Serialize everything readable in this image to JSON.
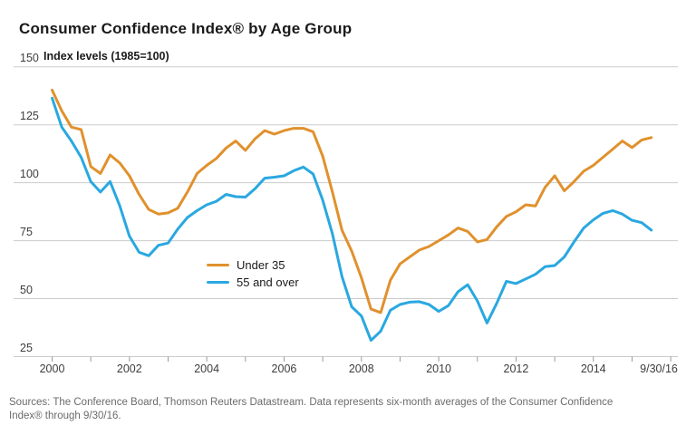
{
  "title": "Consumer Confidence Index® by Age Group",
  "y_axis": {
    "unit_label": "Index levels (1985=100)",
    "ticks": [
      150,
      125,
      100,
      75,
      50,
      25
    ]
  },
  "x_axis": {
    "minor_tick_years": [
      2000,
      2001,
      2002,
      2003,
      2004,
      2005,
      2006,
      2007,
      2008,
      2009,
      2010,
      2011,
      2012,
      2013,
      2014,
      2015,
      2016
    ],
    "labels": [
      "2000",
      "2002",
      "2004",
      "2006",
      "2008",
      "2010",
      "2012",
      "2014",
      "9/30/16"
    ]
  },
  "legend": [
    {
      "label": "Under 35",
      "color": "#E0912D"
    },
    {
      "label": "55 and over",
      "color": "#29A8E0"
    }
  ],
  "source_line1": "Sources: The Conference Board, Thomson Reuters Datastream. Data represents six-month averages of the Consumer Confidence",
  "source_line2": "Index®  through 9/30/16.",
  "colors": {
    "gridline": "#cbcbcb",
    "tick": "#9a9a9a",
    "under35": "#E0912D",
    "over55": "#29A8E0"
  },
  "chart_data": {
    "type": "line",
    "title": "Consumer Confidence Index® by Age Group",
    "ylabel": "Index levels (1985=100)",
    "ylim": [
      25,
      150
    ],
    "grid": "horizontal",
    "legend_position": "inside-left-middle",
    "x": [
      2000,
      2000.25,
      2000.5,
      2000.75,
      2001,
      2001.25,
      2001.5,
      2001.75,
      2002,
      2002.25,
      2002.5,
      2002.75,
      2003,
      2003.25,
      2003.5,
      2003.75,
      2004,
      2004.25,
      2004.5,
      2004.75,
      2005,
      2005.25,
      2005.5,
      2005.75,
      2006,
      2006.25,
      2006.5,
      2006.75,
      2007,
      2007.25,
      2007.5,
      2007.75,
      2008,
      2008.25,
      2008.5,
      2008.75,
      2009,
      2009.25,
      2009.5,
      2009.75,
      2010,
      2010.25,
      2010.5,
      2010.75,
      2011,
      2011.25,
      2011.5,
      2011.75,
      2012,
      2012.25,
      2012.5,
      2012.75,
      2013,
      2013.25,
      2013.5,
      2013.75,
      2014,
      2014.25,
      2014.5,
      2014.75,
      2015,
      2015.25,
      2015.5
    ],
    "series": [
      {
        "name": "Under 35",
        "color": "#E0912D",
        "values": [
          140,
          131,
          124,
          123,
          107,
          104,
          112,
          108.5,
          103,
          95,
          88.5,
          86.5,
          87,
          89,
          96,
          104,
          107.5,
          110.5,
          115,
          118,
          114,
          119,
          122.5,
          121,
          122.5,
          123.5,
          123.5,
          122,
          111.5,
          96,
          79.5,
          70.5,
          59,
          45.5,
          44,
          58,
          65,
          68,
          71,
          72.5,
          75,
          77.5,
          80.5,
          79,
          74.5,
          75.5,
          81,
          85.5,
          87.5,
          90.5,
          90,
          98,
          103,
          96.5,
          100.5,
          105,
          107.5,
          111,
          114.5,
          118,
          115.2,
          118.5,
          119.5
        ]
      },
      {
        "name": "55 and over",
        "color": "#29A8E0",
        "values": [
          136.5,
          124,
          118,
          111,
          100.5,
          96,
          100.5,
          90,
          77,
          70,
          68.5,
          73,
          74,
          80,
          85,
          88,
          90.5,
          92,
          95,
          94,
          93.8,
          97.5,
          102,
          102.4,
          103,
          105.2,
          106.8,
          103.8,
          92.5,
          78,
          59.5,
          46.5,
          42.5,
          32,
          36,
          45,
          47.5,
          48.5,
          48.7,
          47.5,
          44.5,
          47,
          53,
          56,
          49,
          39.5,
          48,
          57.5,
          56.5,
          58.5,
          60.5,
          63.8,
          64.3,
          68,
          74.5,
          80.5,
          84,
          86.8,
          88,
          86.5,
          83.8,
          82.8,
          79.6
        ]
      }
    ]
  }
}
